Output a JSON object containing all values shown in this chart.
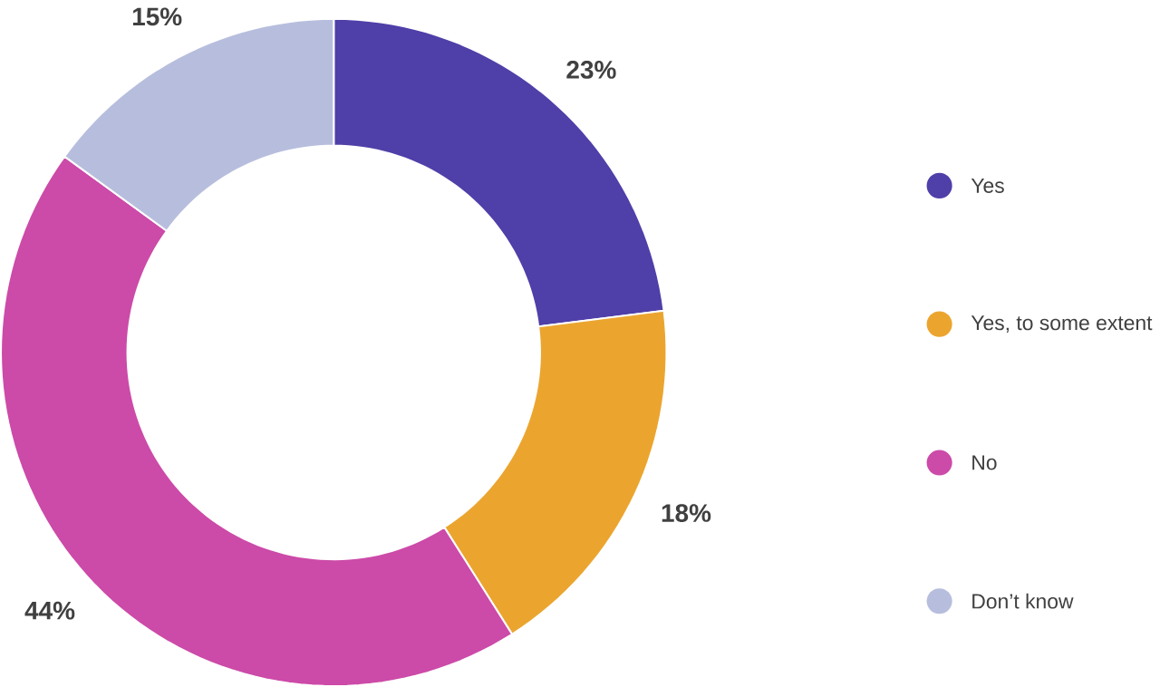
{
  "chart_data": {
    "type": "donut",
    "categories": [
      "Yes",
      "Yes, to some extent",
      "No",
      "Don’t know"
    ],
    "values": [
      23,
      18,
      44,
      15
    ],
    "colors": [
      "#4f3fa8",
      "#eba52f",
      "#cc4aa8",
      "#b7bedd"
    ],
    "value_labels": [
      "23%",
      "18%",
      "44%",
      "15%"
    ],
    "legend": "right"
  }
}
